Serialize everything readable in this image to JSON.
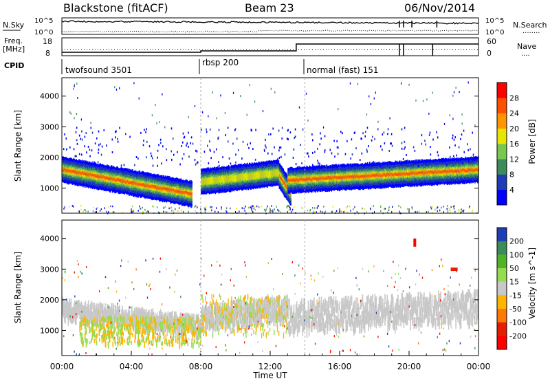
{
  "header": {
    "station": "Blackstone (fitACF)",
    "beam": "Beam 23",
    "date": "06/Nov/2014"
  },
  "nsky_panel": {
    "left_label": "N.Sky",
    "right_label": "N.Search",
    "right_legend": "........",
    "left_ticks": [
      "10^5",
      "10^0"
    ],
    "right_ticks": [
      "10^5",
      "10^0"
    ]
  },
  "freq_panel": {
    "left_label_1": "Freq.",
    "left_label_2": "[MHz]",
    "right_label": "Nave",
    "right_legend": "....",
    "left_ticks": [
      "18",
      "8"
    ],
    "right_ticks": [
      "60",
      "0"
    ]
  },
  "cpid_panel": {
    "label": "CPID",
    "modes": [
      {
        "name": "twofsound 3501",
        "start_hour": 0
      },
      {
        "name": "rbsp 200",
        "start_hour": 8
      },
      {
        "name": "normal (fast) 151",
        "start_hour": 14
      }
    ]
  },
  "power_panel": {
    "ylabel": "Slant Range [km]",
    "yticks": [
      1000,
      2000,
      3000,
      4000
    ],
    "ylim": [
      180,
      4600
    ],
    "colorbar_label": "Power [dB]",
    "colorbar_ticks": [
      "4",
      "8",
      "12",
      "16",
      "20",
      "24",
      "28"
    ],
    "colors": [
      "#0000ff",
      "#1e3cb4",
      "#3c8c5a",
      "#78c850",
      "#e6e600",
      "#ff9600",
      "#ff5000",
      "#ff0000"
    ]
  },
  "velocity_panel": {
    "ylabel": "Slant Range [km]",
    "yticks": [
      1000,
      2000,
      3000,
      4000
    ],
    "colorbar_label": "Velocity [m s^-1]",
    "colorbar_ticks": [
      "200",
      "100",
      "50",
      "15",
      "-15",
      "-50",
      "-100",
      "-200"
    ],
    "colors": [
      "#1e3cb4",
      "#3c8c5a",
      "#50b428",
      "#96dc50",
      "#c8c8c8",
      "#ffb400",
      "#ff7800",
      "#e61e00",
      "#ff0000"
    ]
  },
  "x_axis": {
    "label": "Time UT",
    "tick_labels": [
      "00:00",
      "04:00",
      "08:00",
      "12:00",
      "16:00",
      "20:00",
      "00:00"
    ],
    "tick_hours": [
      0,
      4,
      8,
      12,
      16,
      20,
      24
    ]
  },
  "chart_data": [
    {
      "type": "heatmap",
      "title": "Blackstone (fitACF) Beam 23 06/Nov/2014 — Power",
      "xlabel": "Time UT",
      "ylabel": "Slant Range [km]",
      "xlim": [
        0,
        24
      ],
      "ylim": [
        180,
        4600
      ],
      "zlabel": "Power [dB]",
      "bands": [
        {
          "hours": [
            0,
            7.5
          ],
          "range_start_km": 1600,
          "range_end_km": 800,
          "peak_db": 28
        },
        {
          "hours": [
            8,
            12.5
          ],
          "range_start_km": 1200,
          "range_end_km": 1500,
          "peak_db": 16
        },
        {
          "hours": [
            12.5,
            13.2
          ],
          "range_start_km": 1400,
          "range_end_km": 800,
          "peak_db": 24
        },
        {
          "hours": [
            13,
            24
          ],
          "range_start_km": 1250,
          "range_end_km": 1600,
          "peak_db": 28
        }
      ]
    },
    {
      "type": "heatmap",
      "title": "Blackstone (fitACF) Beam 23 06/Nov/2014 — Velocity",
      "xlabel": "Time UT",
      "ylabel": "Slant Range [km]",
      "xlim": [
        0,
        24
      ],
      "ylim": [
        180,
        4600
      ],
      "zlabel": "Velocity [m s^-1]",
      "features": [
        {
          "hours": [
            2,
            7
          ],
          "range_km": [
            700,
            1400
          ],
          "velocity": "-15 to 15 / +15 to +50"
        },
        {
          "hours": [
            6,
            8
          ],
          "range_km": [
            1500,
            2100
          ],
          "velocity": "-15 to -50"
        },
        {
          "hours": [
            14,
            24
          ],
          "range_km": [
            1200,
            2400
          ],
          "velocity": "-15 to 15"
        },
        {
          "hours": [
            20.2,
            20.4
          ],
          "range_km": [
            3800,
            4000
          ],
          "velocity": "-200"
        }
      ]
    }
  ]
}
